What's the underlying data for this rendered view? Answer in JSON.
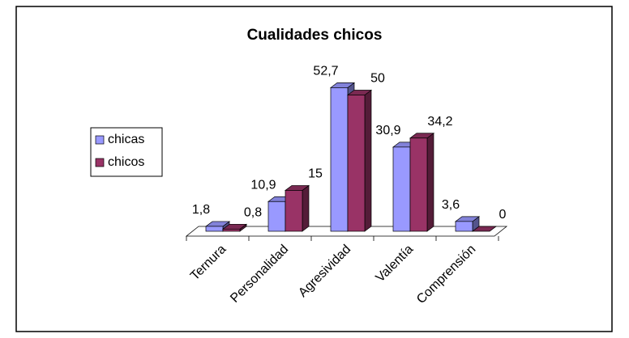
{
  "chart_data": {
    "type": "bar3d",
    "title": "Cualidades chicos",
    "categories": [
      "Ternura",
      "Personalidad",
      "Agresividad",
      "Valentía",
      "Comprensión"
    ],
    "series": [
      {
        "name": "chicas",
        "color": "#9999ff",
        "values": [
          1.8,
          10.9,
          52.7,
          30.9,
          3.6
        ],
        "value_labels": [
          "1,8",
          "10,9",
          "52,7",
          "30,9",
          "3,6"
        ]
      },
      {
        "name": "chicos",
        "color": "#993366",
        "values": [
          0.8,
          15,
          50,
          34.2,
          0
        ],
        "value_labels": [
          "0,8",
          "15",
          "50",
          "34,2",
          "0"
        ]
      }
    ],
    "legend": "left"
  }
}
